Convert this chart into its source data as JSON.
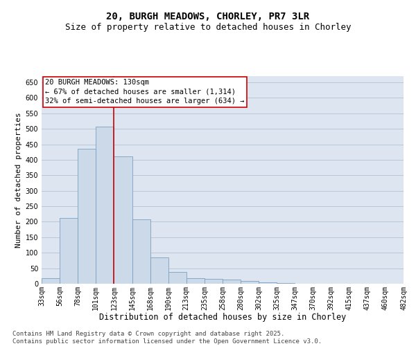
{
  "title": "20, BURGH MEADOWS, CHORLEY, PR7 3LR",
  "subtitle": "Size of property relative to detached houses in Chorley",
  "xlabel": "Distribution of detached houses by size in Chorley",
  "ylabel": "Number of detached properties",
  "bar_values": [
    17,
    213,
    435,
    507,
    410,
    207,
    85,
    38,
    17,
    15,
    13,
    8,
    4,
    2,
    1,
    1,
    1,
    0,
    0,
    0
  ],
  "bar_labels": [
    "33sqm",
    "56sqm",
    "78sqm",
    "101sqm",
    "123sqm",
    "145sqm",
    "168sqm",
    "190sqm",
    "213sqm",
    "235sqm",
    "258sqm",
    "280sqm",
    "302sqm",
    "325sqm",
    "347sqm",
    "370sqm",
    "392sqm",
    "415sqm",
    "437sqm",
    "460sqm",
    "482sqm"
  ],
  "bar_color": "#ccd9e8",
  "bar_edge_color": "#7a9fc0",
  "reference_line_x": 4,
  "reference_line_color": "#cc0000",
  "annotation_text": "20 BURGH MEADOWS: 130sqm\n← 67% of detached houses are smaller (1,314)\n32% of semi-detached houses are larger (634) →",
  "annotation_box_color": "#ffffff",
  "annotation_box_edge": "#cc0000",
  "ylim": [
    0,
    670
  ],
  "yticks": [
    0,
    50,
    100,
    150,
    200,
    250,
    300,
    350,
    400,
    450,
    500,
    550,
    600,
    650
  ],
  "grid_color": "#b8c8d8",
  "bg_color": "#dde5f0",
  "footer": "Contains HM Land Registry data © Crown copyright and database right 2025.\nContains public sector information licensed under the Open Government Licence v3.0.",
  "title_fontsize": 10,
  "subtitle_fontsize": 9,
  "xlabel_fontsize": 8.5,
  "ylabel_fontsize": 8,
  "tick_fontsize": 7,
  "footer_fontsize": 6.5,
  "annot_fontsize": 7.5
}
